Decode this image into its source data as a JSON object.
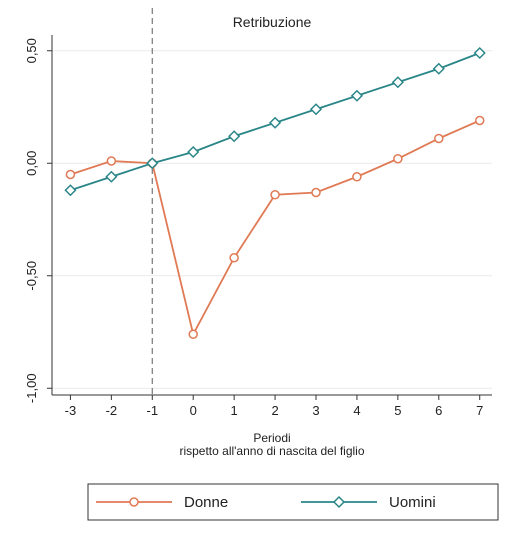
{
  "chart_data": {
    "type": "line",
    "title": "Retribuzione",
    "x": [
      -3,
      -2,
      -1,
      0,
      1,
      2,
      3,
      4,
      5,
      6,
      7
    ],
    "xlim": [
      -3.45,
      7.3
    ],
    "xticks": [
      -3,
      -2,
      -1,
      0,
      1,
      2,
      3,
      4,
      5,
      6,
      7
    ],
    "ylim": [
      -1.03,
      0.57
    ],
    "yticks": [
      {
        "value": -1,
        "label": "-1,00"
      },
      {
        "value": -0.5,
        "label": "-0,50"
      },
      {
        "value": 0,
        "label": "0,00"
      },
      {
        "value": 0.5,
        "label": "0,50"
      }
    ],
    "grid": true,
    "reference_x": -1,
    "xlabel": [
      "Periodi",
      "rispetto all'anno di nascita del figlio"
    ],
    "legend": "bottom",
    "series": [
      {
        "name": "Donne",
        "color": "#e07a55",
        "marker": "circle",
        "values": [
          -0.05,
          0.01,
          0.0,
          -0.76,
          -0.42,
          -0.14,
          -0.13,
          -0.06,
          0.02,
          0.11,
          0.19
        ]
      },
      {
        "name": "Uomini",
        "color": "#2a8688",
        "marker": "diamond",
        "values": [
          -0.12,
          -0.06,
          0.0,
          0.05,
          0.12,
          0.18,
          0.24,
          0.3,
          0.36,
          0.42,
          0.49
        ]
      }
    ]
  }
}
